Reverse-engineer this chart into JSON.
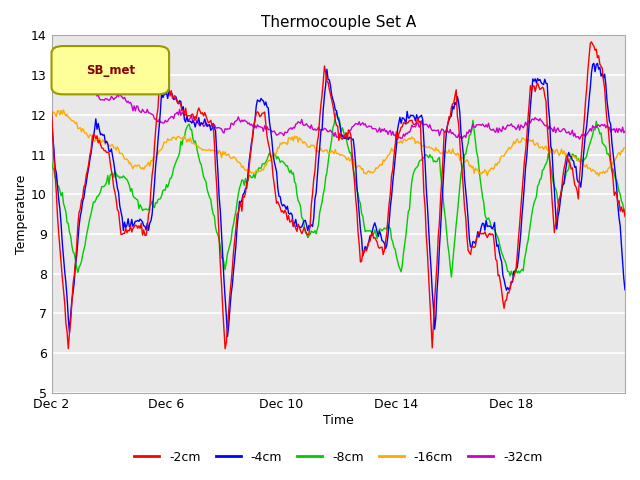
{
  "title": "Thermocouple Set A",
  "xlabel": "Time",
  "ylabel": "Temperature",
  "ylim": [
    5.0,
    14.0
  ],
  "yticks": [
    5.0,
    6.0,
    7.0,
    8.0,
    9.0,
    10.0,
    11.0,
    12.0,
    13.0,
    14.0
  ],
  "xtick_labels": [
    "Dec 2",
    "Dec 6",
    "Dec 10",
    "Dec 14",
    "Dec 18"
  ],
  "xtick_positions": [
    0,
    96,
    192,
    288,
    384
  ],
  "n_points": 480,
  "colors": {
    "-2cm": "#ff0000",
    "-4cm": "#0000ff",
    "-8cm": "#00cc00",
    "-16cm": "#ffaa00",
    "-32cm": "#cc00cc"
  },
  "legend_labels": [
    "-2cm",
    "-4cm",
    "-8cm",
    "-16cm",
    "-32cm"
  ],
  "sb_met_box_facecolor": "#ffff99",
  "sb_met_text_color": "#880000",
  "sb_met_border_color": "#999900",
  "fig_facecolor": "#ffffff",
  "plot_bg_color": "#e8e8e8",
  "grid_color": "#ffffff",
  "line_width": 1.0,
  "figwidth": 6.4,
  "figheight": 4.8,
  "dpi": 100
}
